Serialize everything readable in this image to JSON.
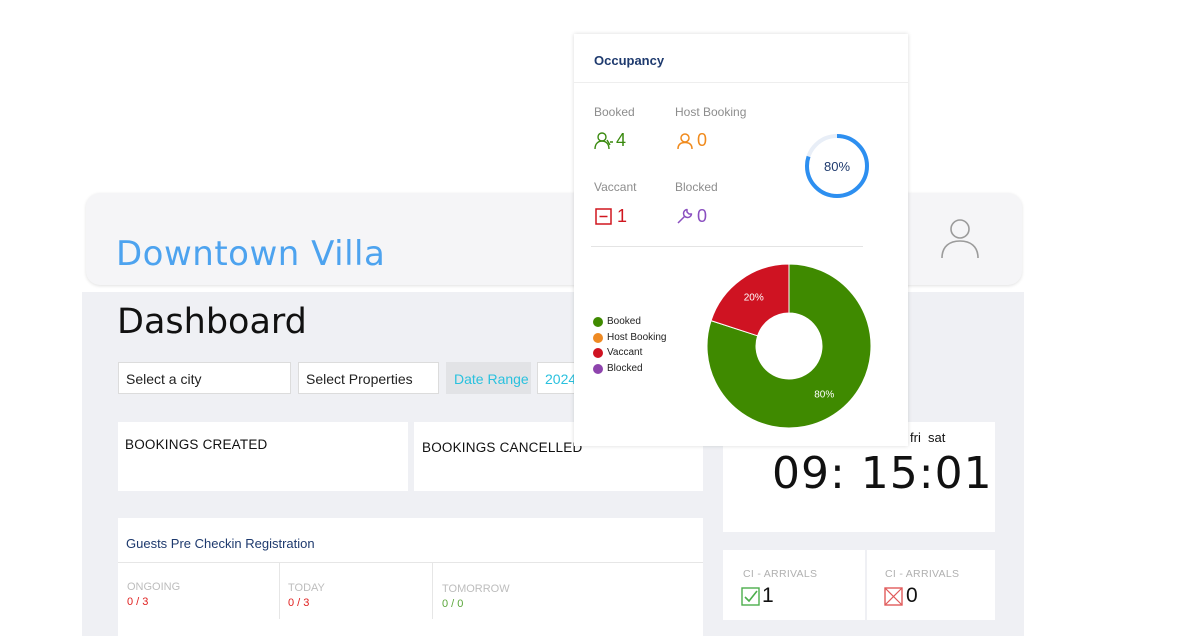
{
  "header": {
    "brand": "Downtown Villa"
  },
  "dashboard": {
    "title": "Dashboard",
    "filters": {
      "city": "Select a city",
      "properties": "Select Properties",
      "date_range": "Date Range",
      "date_value": "2024"
    },
    "bookings_created": "BOOKINGS CREATED",
    "bookings_cancelled": "BOOKINGS CANCELLED",
    "clock": {
      "days": "fri  sat",
      "time": "09: 15:01"
    },
    "guests": {
      "title": "Guests Pre Checkin Registration",
      "columns": [
        {
          "label": "ONGOING",
          "value": "0 / 3",
          "color": "#e0201f"
        },
        {
          "label": "TODAY",
          "value": "0 / 3",
          "color": "#e0201f"
        },
        {
          "label": "TOMORROW",
          "value": "0 / 0",
          "color": "#5aa63a"
        }
      ]
    },
    "arrivals": [
      {
        "label": "CI - ARRIVALS",
        "value": "1",
        "icon": "check-box-icon",
        "color": "#4cae4c"
      },
      {
        "label": "CI - ARRIVALS",
        "value": "0",
        "icon": "x-box-icon",
        "color": "#e05b5b"
      }
    ]
  },
  "occupancy": {
    "title": "Occupancy",
    "stats": [
      {
        "label": "Booked",
        "value": "4",
        "icon": "users-icon",
        "color": "#3a8a0f"
      },
      {
        "label": "Host Booking",
        "value": "0",
        "icon": "user-icon",
        "color": "#f08a1c"
      },
      {
        "label": "Vaccant",
        "value": "1",
        "icon": "minus-box-icon",
        "color": "#d0161f"
      },
      {
        "label": "Blocked",
        "value": "0",
        "icon": "wrench-icon",
        "color": "#8a4fc0"
      }
    ],
    "gauge": {
      "label": "80%",
      "value": 0.8,
      "color": "#2d8ff0"
    }
  },
  "chart_data": {
    "type": "pie",
    "donut": true,
    "categories": [
      "Booked",
      "Host Booking",
      "Vaccant",
      "Blocked"
    ],
    "values": [
      80,
      0,
      20,
      0
    ],
    "data_labels": [
      "80%",
      "",
      "20%",
      ""
    ],
    "colors": [
      "#3f8a00",
      "#ee8a23",
      "#cf1322",
      "#8e44ad"
    ],
    "legend": "left"
  }
}
